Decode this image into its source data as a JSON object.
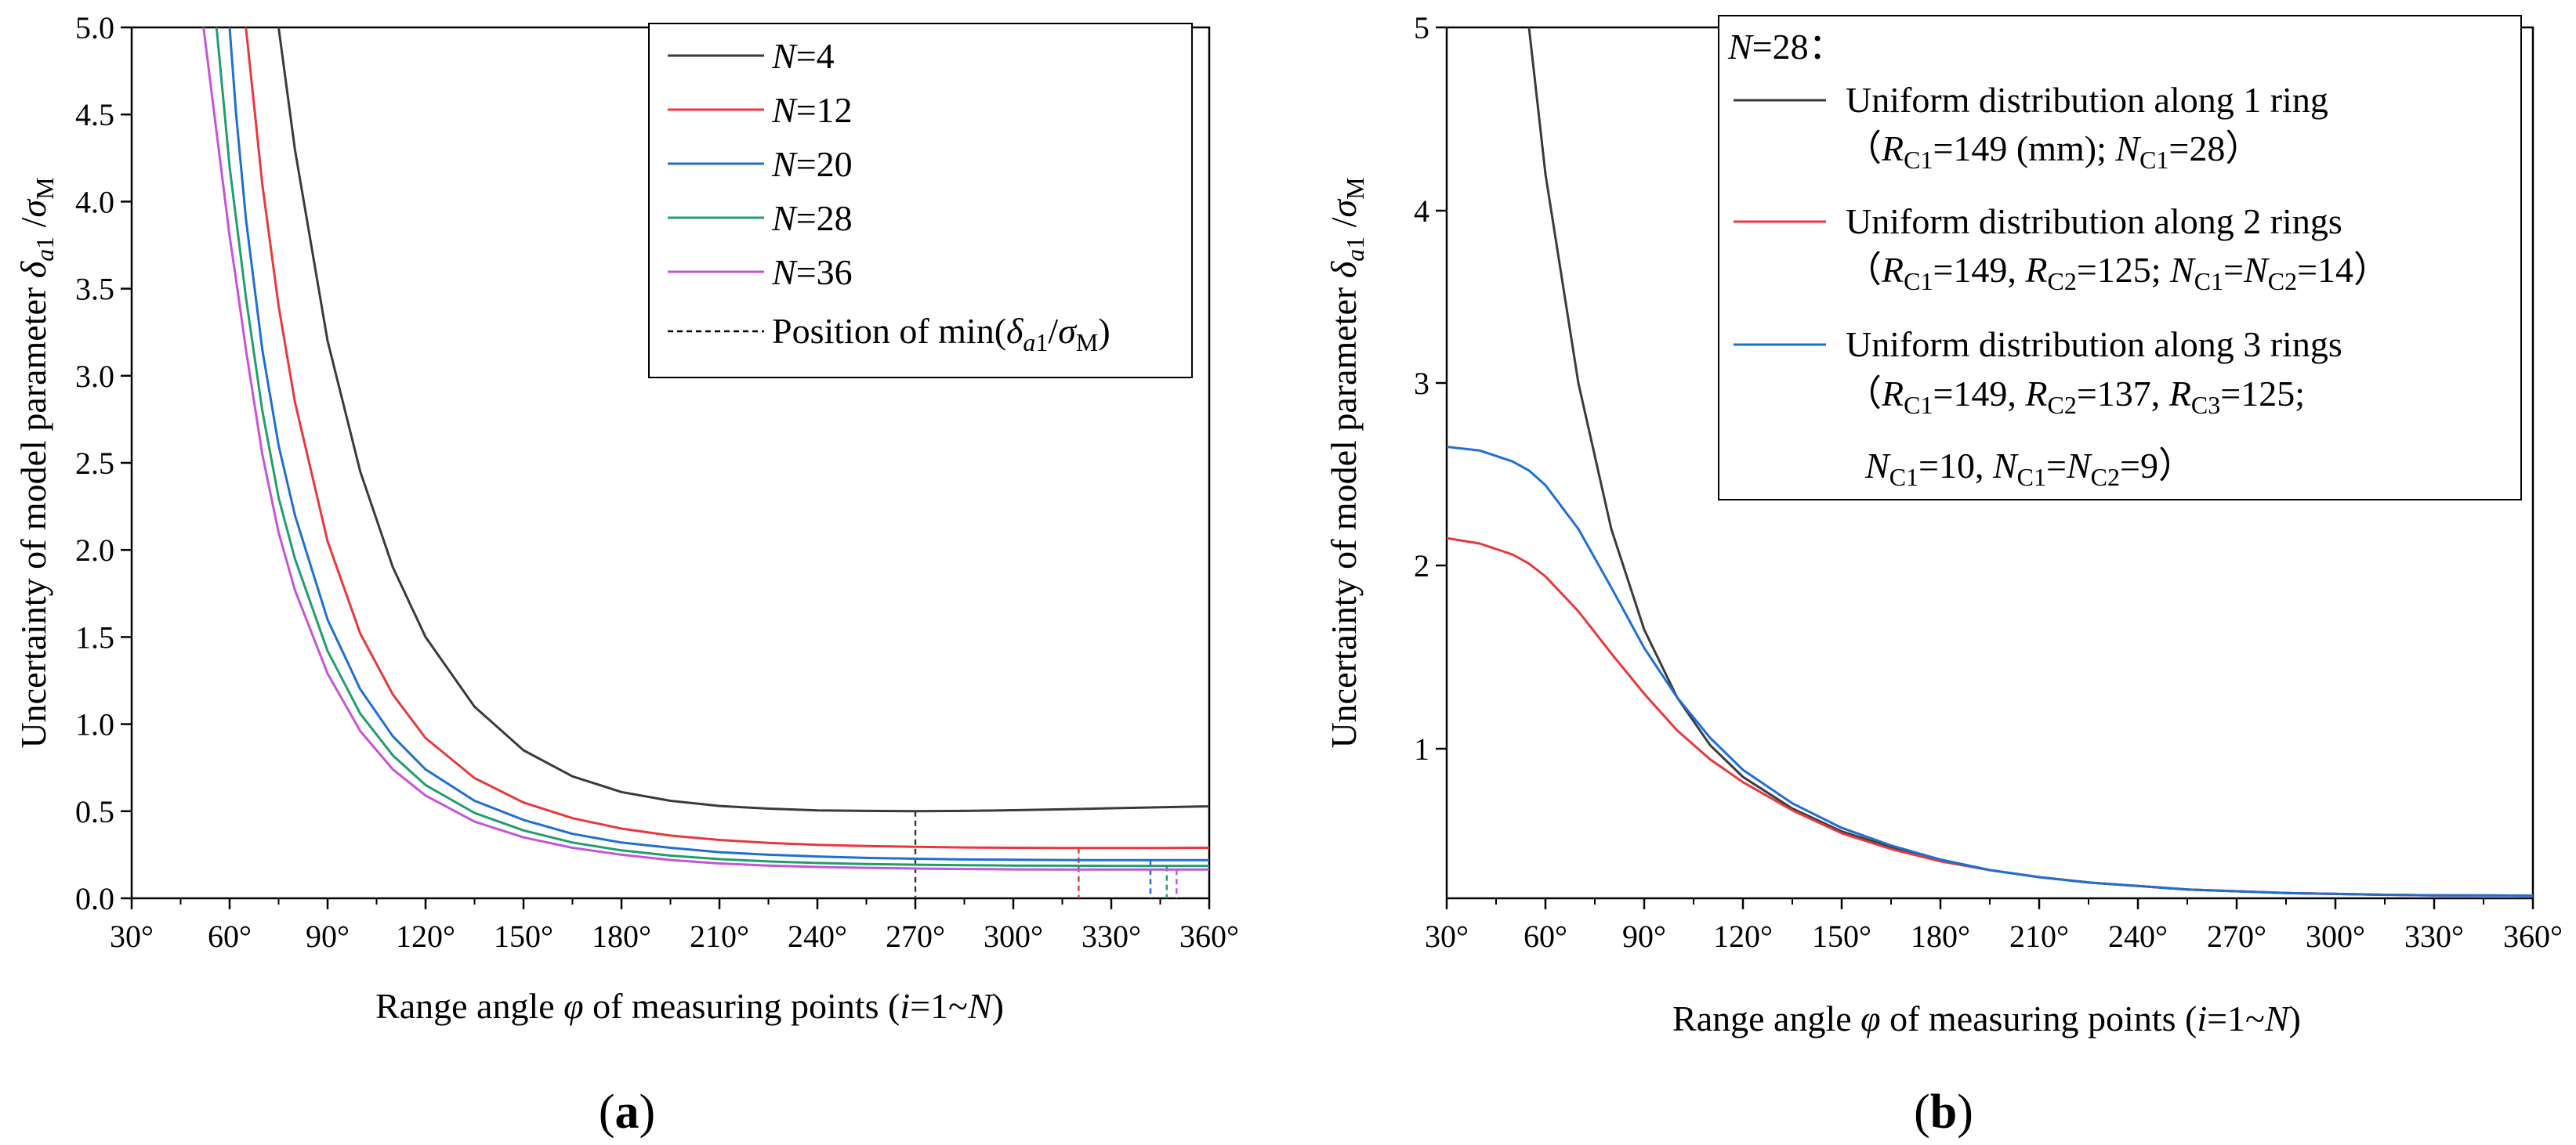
{
  "chart_data": [
    {
      "panel_label": "(a)",
      "type": "line",
      "xlabel": "Range angle φ of measuring points (i=1~N)",
      "ylabel": "Uncertainty of model parameter δa1 /σM",
      "xlim": [
        30,
        360
      ],
      "ylim": [
        0,
        5
      ],
      "x_ticks": [
        "30°",
        "60°",
        "90°",
        "120°",
        "150°",
        "180°",
        "210°",
        "240°",
        "270°",
        "300°",
        "330°",
        "360°"
      ],
      "y_ticks": [
        "0.0",
        "0.5",
        "1.0",
        "1.5",
        "2.0",
        "2.5",
        "3.0",
        "3.5",
        "4.0",
        "4.5",
        "5.0"
      ],
      "legend_position": "top-right",
      "legend_min_label": "Position of min(δa1/σM)",
      "x": [
        45,
        50,
        52,
        54,
        56,
        58,
        60,
        62,
        65,
        70,
        75,
        80,
        90,
        100,
        110,
        120,
        135,
        150,
        165,
        180,
        195,
        210,
        225,
        240,
        255,
        270,
        285,
        300,
        315,
        330,
        345,
        360
      ],
      "series": [
        {
          "name": "N=4",
          "color": "#3a3a3a",
          "min_x": 270,
          "values": [
            null,
            null,
            null,
            null,
            null,
            null,
            null,
            null,
            null,
            null,
            5.0,
            4.3,
            3.2,
            2.45,
            1.9,
            1.5,
            1.1,
            0.85,
            0.7,
            0.61,
            0.56,
            0.53,
            0.515,
            0.505,
            0.502,
            0.5,
            0.502,
            0.506,
            0.511,
            0.517,
            0.523,
            0.528
          ]
        },
        {
          "name": "N=12",
          "color": "#e8383b",
          "min_x": 320,
          "values": [
            null,
            null,
            null,
            null,
            null,
            null,
            null,
            null,
            5.0,
            4.1,
            3.4,
            2.85,
            2.05,
            1.52,
            1.17,
            0.92,
            0.69,
            0.55,
            0.46,
            0.4,
            0.36,
            0.335,
            0.318,
            0.307,
            0.3,
            0.296,
            0.292,
            0.29,
            0.289,
            0.289,
            0.289,
            0.29
          ]
        },
        {
          "name": "N=20",
          "color": "#1f6fd1",
          "min_x": 342,
          "values": [
            null,
            null,
            null,
            null,
            null,
            null,
            5.0,
            4.5,
            3.9,
            3.15,
            2.6,
            2.2,
            1.6,
            1.2,
            0.93,
            0.74,
            0.56,
            0.45,
            0.37,
            0.32,
            0.29,
            0.265,
            0.25,
            0.24,
            0.232,
            0.227,
            0.223,
            0.221,
            0.22,
            0.219,
            0.219,
            0.219
          ]
        },
        {
          "name": "N=28",
          "color": "#1f9e6e",
          "min_x": 347,
          "values": [
            null,
            null,
            null,
            null,
            5.0,
            4.6,
            4.2,
            3.9,
            3.45,
            2.8,
            2.3,
            1.95,
            1.42,
            1.06,
            0.82,
            0.65,
            0.49,
            0.39,
            0.32,
            0.275,
            0.245,
            0.225,
            0.212,
            0.203,
            0.197,
            0.193,
            0.19,
            0.188,
            0.187,
            0.186,
            0.186,
            0.186
          ]
        },
        {
          "name": "N=36",
          "color": "#c455d8",
          "min_x": 350,
          "values": [
            null,
            null,
            5.0,
            4.7,
            4.4,
            4.1,
            3.8,
            3.55,
            3.15,
            2.55,
            2.1,
            1.77,
            1.29,
            0.96,
            0.74,
            0.59,
            0.44,
            0.35,
            0.29,
            0.25,
            0.22,
            0.2,
            0.188,
            0.18,
            0.175,
            0.171,
            0.168,
            0.166,
            0.165,
            0.165,
            0.165,
            0.165
          ]
        }
      ]
    },
    {
      "panel_label": "(b)",
      "type": "line",
      "xlabel": "Range angle φ of measuring points (i=1~N)",
      "ylabel": "Uncertainty of model parameter δa1 /σM",
      "xlim": [
        30,
        360
      ],
      "ylim": [
        0.15,
        5
      ],
      "x_ticks": [
        "30°",
        "60°",
        "90°",
        "120°",
        "150°",
        "180°",
        "210°",
        "240°",
        "270°",
        "300°",
        "330°",
        "360°"
      ],
      "y_ticks": [
        "1",
        "2",
        "3",
        "4",
        "5"
      ],
      "legend_position": "top-right",
      "legend_title": "N=28:",
      "x": [
        30,
        40,
        50,
        55,
        60,
        70,
        80,
        90,
        100,
        110,
        120,
        135,
        150,
        165,
        180,
        195,
        210,
        225,
        240,
        255,
        270,
        285,
        300,
        315,
        330,
        345,
        360
      ],
      "series": [
        {
          "name": "Uniform distribution along 1 ring",
          "detail": "(RC1=149 (mm); NC1=28)",
          "color": "#3a3a3a",
          "values": [
            null,
            null,
            null,
            5.0,
            4.2,
            3.0,
            2.2,
            1.65,
            1.28,
            1.02,
            0.84,
            0.66,
            0.53,
            0.44,
            0.37,
            0.31,
            0.27,
            0.24,
            0.22,
            0.2,
            0.19,
            0.18,
            0.175,
            0.17,
            0.167,
            0.166,
            0.165
          ]
        },
        {
          "name": "Uniform distribution along 2 rings",
          "detail": "(RC1=149, RC2=125; NC1=NC2=14)",
          "color": "#e8383b",
          "values": [
            2.15,
            2.12,
            2.06,
            2.01,
            1.94,
            1.75,
            1.52,
            1.3,
            1.1,
            0.94,
            0.81,
            0.65,
            0.52,
            0.43,
            0.36,
            0.31,
            0.27,
            0.24,
            0.22,
            0.2,
            0.19,
            0.18,
            0.175,
            0.17,
            0.167,
            0.166,
            0.165
          ]
        },
        {
          "name": "Uniform distribution along 3 rings",
          "detail1": "(RC1=149, RC2=137, RC3=125;",
          "detail2": "NC1=10, NC1=NC2=9)",
          "color": "#1f6fd1",
          "values": [
            2.65,
            2.63,
            2.57,
            2.52,
            2.44,
            2.2,
            1.88,
            1.55,
            1.28,
            1.06,
            0.88,
            0.69,
            0.55,
            0.45,
            0.37,
            0.31,
            0.27,
            0.24,
            0.22,
            0.2,
            0.19,
            0.18,
            0.175,
            0.17,
            0.167,
            0.166,
            0.165
          ]
        }
      ]
    }
  ]
}
